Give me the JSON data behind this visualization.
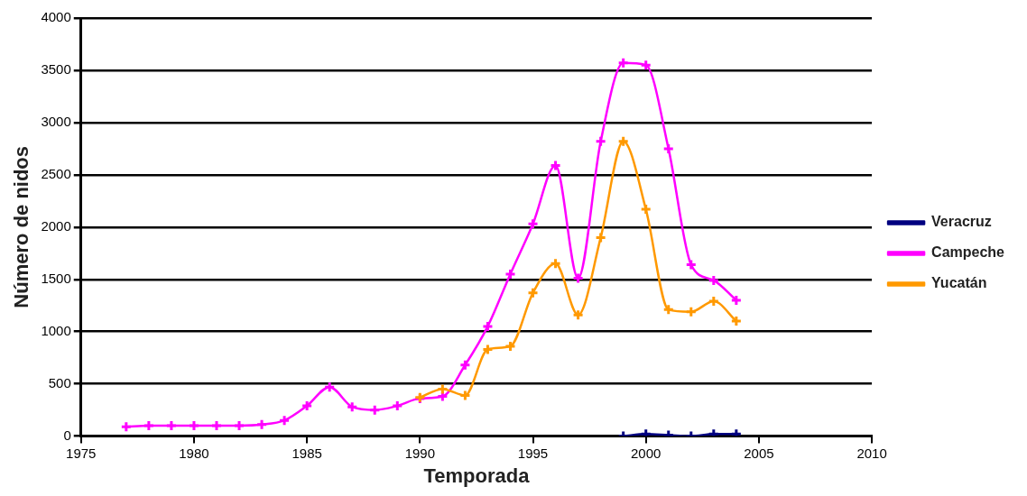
{
  "chart_data": {
    "type": "line",
    "xlabel": "Temporada",
    "ylabel": "Número de nidos",
    "xlim": [
      1975,
      2010
    ],
    "xticks": [
      1975,
      1980,
      1985,
      1990,
      1995,
      2000,
      2005,
      2010
    ],
    "ylim": [
      0,
      4000
    ],
    "yticks": [
      0,
      500,
      1000,
      1500,
      2000,
      2500,
      3000,
      3500,
      4000
    ],
    "grid": "y",
    "legend": "right",
    "marker": "cross",
    "series": [
      {
        "name": "Veracruz",
        "color": "#000080",
        "x": [
          1999,
          2000,
          2001,
          2002,
          2003,
          2004
        ],
        "values": [
          0,
          20,
          10,
          0,
          20,
          20
        ]
      },
      {
        "name": "Campeche",
        "color": "#ff00ff",
        "x": [
          1977,
          1978,
          1979,
          1980,
          1981,
          1982,
          1983,
          1984,
          1985,
          1986,
          1987,
          1988,
          1989,
          1990,
          1991,
          1992,
          1993,
          1994,
          1995,
          1996,
          1997,
          1998,
          1999,
          2000,
          2001,
          2002,
          2003,
          2004
        ],
        "values": [
          90,
          100,
          100,
          100,
          100,
          100,
          110,
          150,
          290,
          470,
          280,
          250,
          290,
          360,
          380,
          680,
          1050,
          1550,
          2030,
          2590,
          1510,
          2820,
          3570,
          3550,
          2750,
          1640,
          1490,
          1300
        ]
      },
      {
        "name": "Yucatán",
        "color": "#ff9900",
        "x": [
          1990,
          1991,
          1992,
          1993,
          1994,
          1995,
          1996,
          1997,
          1998,
          1999,
          2000,
          2001,
          2002,
          2003,
          2004
        ],
        "values": [
          370,
          450,
          390,
          830,
          860,
          1370,
          1650,
          1160,
          1900,
          2820,
          2170,
          1210,
          1190,
          1290,
          1100
        ]
      }
    ]
  }
}
